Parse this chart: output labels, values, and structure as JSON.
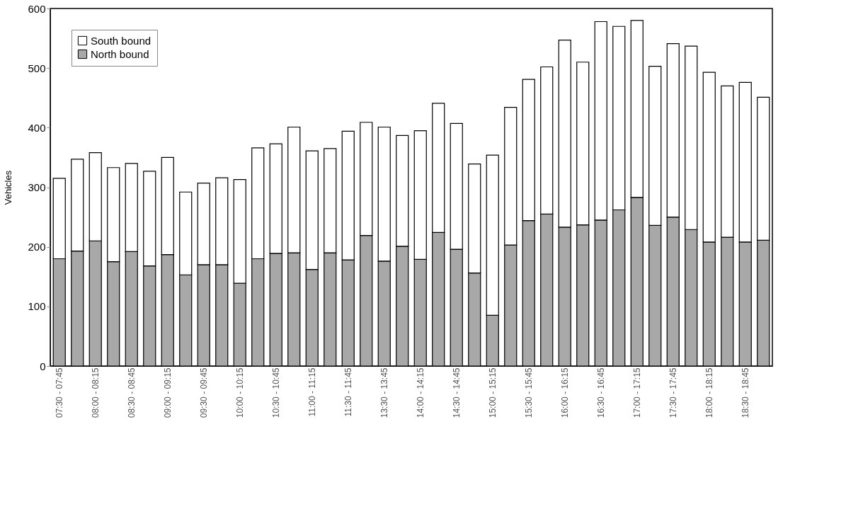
{
  "chart_data": {
    "type": "bar",
    "stacked": true,
    "ylabel": "Vehicles",
    "categories": [
      "07:30 - 07:45",
      null,
      "08:00 - 08:15",
      null,
      "08:30 - 08:45",
      null,
      "09:00 - 09:15",
      null,
      "09:30 - 09:45",
      null,
      "10:00 - 10:15",
      null,
      "10:30 - 10:45",
      null,
      "11:00 - 11:15",
      null,
      "11:30 - 11:45",
      null,
      "13:30 - 13:45",
      null,
      "14:00 - 14:15",
      null,
      "14:30 - 14:45",
      null,
      "15:00 - 15:15",
      null,
      "15:30 - 15:45",
      null,
      "16:00 - 16:15",
      null,
      "16:30 - 16:45",
      null,
      "17:00 - 17:15",
      null,
      "17:30 - 17:45",
      null,
      "18:00 - 18:15",
      null,
      "18:30 - 18:45",
      null
    ],
    "series": [
      {
        "name": "North bound",
        "color": "#a8a8a8",
        "values": [
          180,
          193,
          210,
          175,
          192,
          168,
          187,
          153,
          170,
          170,
          139,
          180,
          189,
          190,
          162,
          190,
          178,
          219,
          176,
          201,
          179,
          224,
          196,
          156,
          85,
          203,
          244,
          255,
          233,
          237,
          245,
          262,
          283,
          236,
          250,
          229,
          208,
          216,
          208,
          211
        ]
      },
      {
        "name": "South bound",
        "color": "#ffffff",
        "values": [
          135,
          154,
          148,
          158,
          148,
          159,
          163,
          139,
          137,
          146,
          174,
          186,
          184,
          211,
          199,
          175,
          216,
          190,
          225,
          186,
          216,
          217,
          211,
          183,
          269,
          231,
          237,
          247,
          314,
          273,
          333,
          308,
          297,
          267,
          291,
          308,
          285,
          254,
          268,
          240
        ]
      }
    ],
    "ylim": [
      0,
      600
    ],
    "yticks": [
      0,
      100,
      200,
      300,
      400,
      500,
      600
    ],
    "grid": false,
    "legend": "top left"
  }
}
